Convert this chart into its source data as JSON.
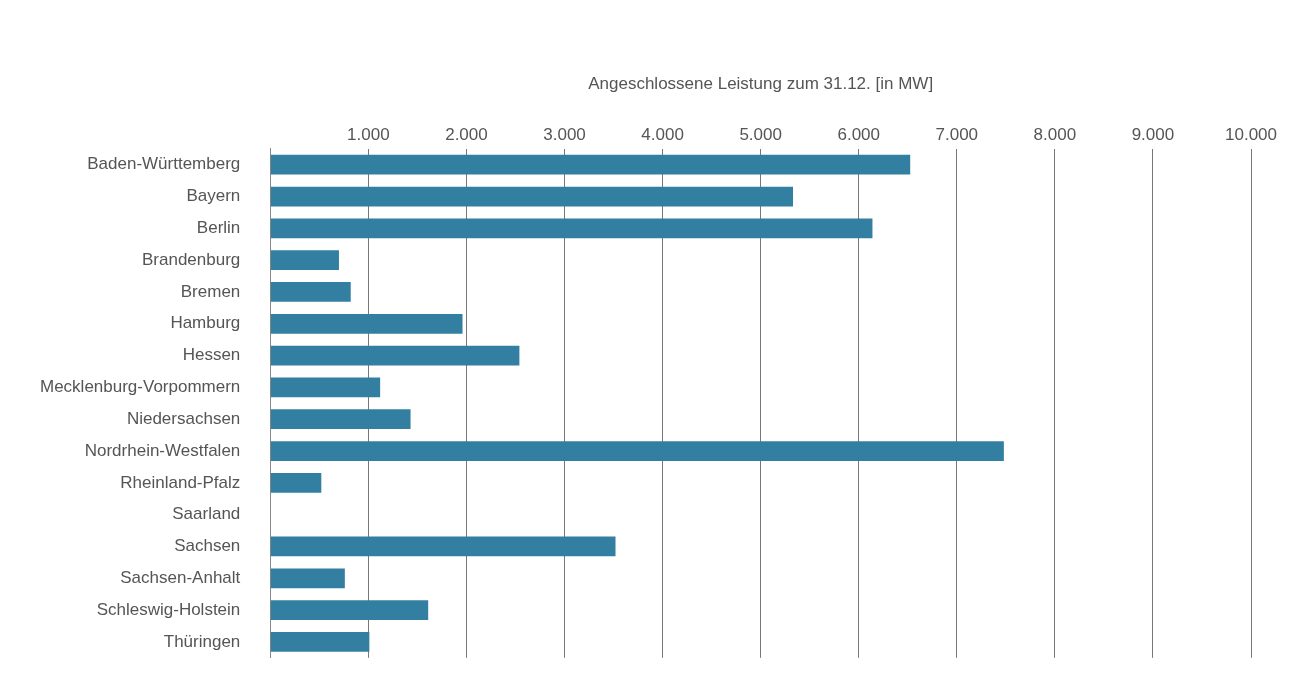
{
  "chart_data": {
    "type": "bar",
    "orientation": "horizontal",
    "xlabel": "Angeschlossene Leistung zum 31.12. [in MW]",
    "categories": [
      "Baden-Württemberg",
      "Bayern",
      "Berlin",
      "Brandenburg",
      "Bremen",
      "Hamburg",
      "Hessen",
      "Mecklenburg-Vorpommern",
      "Niedersachsen",
      "Nordrhein-Westfalen",
      "Rheinland-Pfalz",
      "Saarland",
      "Sachsen",
      "Sachsen-Anhalt",
      "Schleswig-Holstein",
      "Thüringen"
    ],
    "values": [
      6525,
      5330,
      6140,
      700,
      820,
      1960,
      2540,
      1120,
      1430,
      7480,
      520,
      null,
      3520,
      760,
      1610,
      1010
    ],
    "color": "#337fa1",
    "xlim": [
      0,
      10000
    ],
    "xticks": [
      {
        "value": 0,
        "label": null
      },
      {
        "value": 1000,
        "label": "1.000"
      },
      {
        "value": 2000,
        "label": "2.000"
      },
      {
        "value": 3000,
        "label": "3.000"
      },
      {
        "value": 4000,
        "label": "4.000"
      },
      {
        "value": 5000,
        "label": "5.000"
      },
      {
        "value": 6000,
        "label": "6.000"
      },
      {
        "value": 7000,
        "label": "7.000"
      },
      {
        "value": 8000,
        "label": "8.000"
      },
      {
        "value": 9000,
        "label": "9.000"
      },
      {
        "value": 10000,
        "label": "10.000"
      }
    ],
    "grid": "x"
  }
}
